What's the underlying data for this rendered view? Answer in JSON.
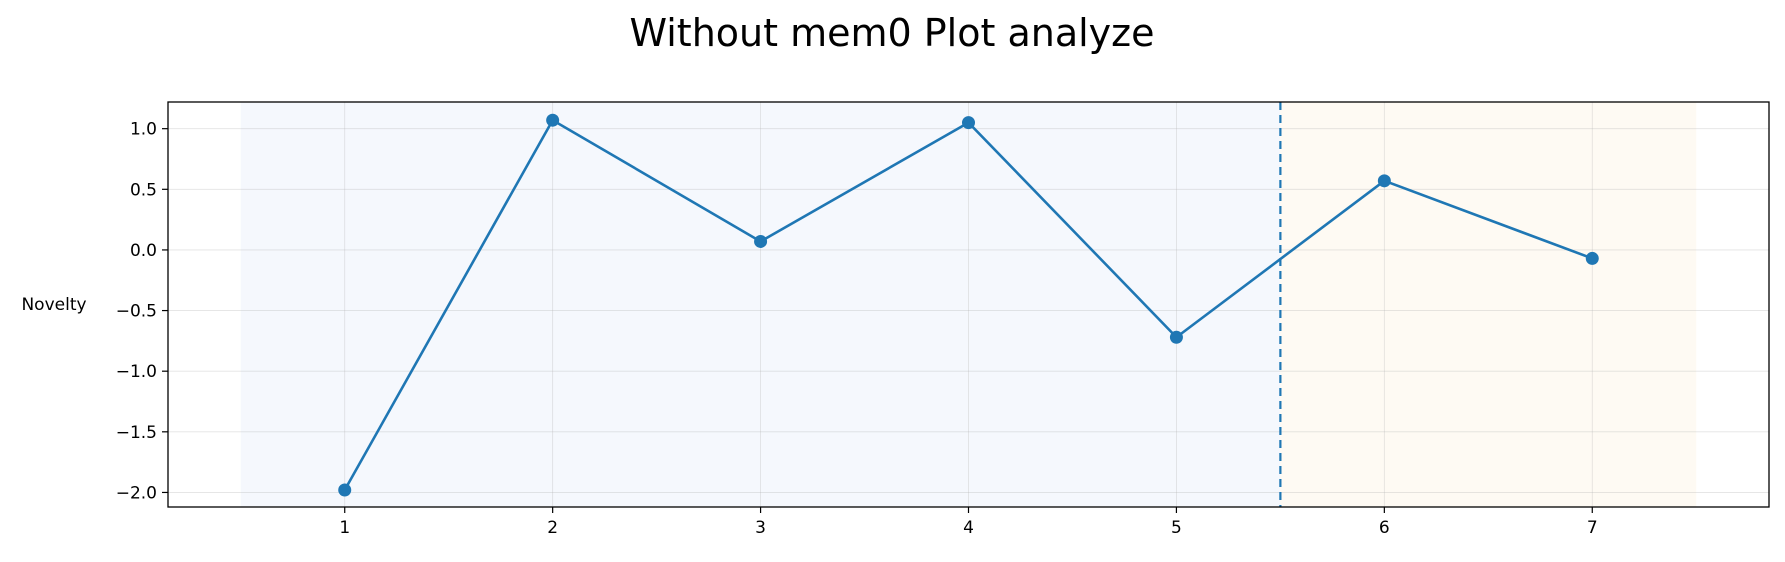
{
  "chart_data": {
    "type": "line",
    "title": "Without mem0 Plot analyze",
    "xlabel": "",
    "ylabel": "Novelty",
    "x": [
      1,
      2,
      3,
      4,
      5,
      6,
      7
    ],
    "series": [
      {
        "values": [
          -1.98,
          1.07,
          0.07,
          1.05,
          -0.72,
          0.57,
          -0.07
        ],
        "color": "#1f77b4"
      }
    ],
    "xticks": [
      1,
      2,
      3,
      4,
      5,
      6,
      7
    ],
    "yticks": [
      1.0,
      0.5,
      0.0,
      -0.5,
      -1.0,
      -1.5,
      -2.0
    ],
    "ytick_labels": [
      "1.0",
      "0.5",
      "0.0",
      "−0.5",
      "−1.0",
      "−1.5",
      "−2.0"
    ],
    "xlim": [
      0.15,
      7.85
    ],
    "ylim": [
      -2.12,
      1.22
    ],
    "grid": true,
    "regions": [
      {
        "x_start": 0.5,
        "x_end": 5.5,
        "color": "#f5f8fd"
      },
      {
        "x_start": 5.5,
        "x_end": 7.5,
        "color": "#fefaf3"
      }
    ],
    "vline": {
      "x": 5.5,
      "color": "#1f77b4",
      "style": "dashed"
    }
  }
}
